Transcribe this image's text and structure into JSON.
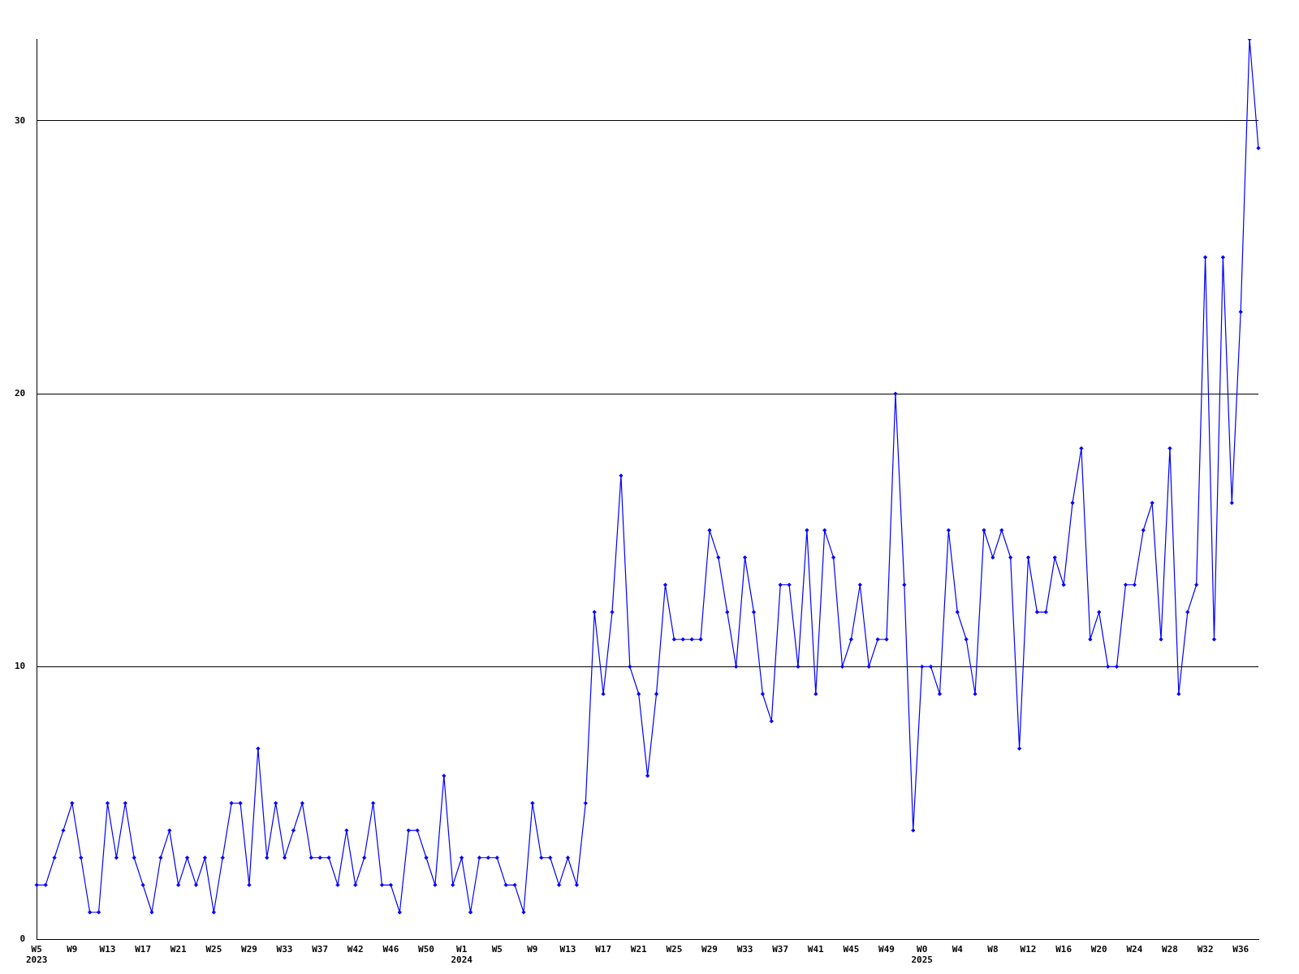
{
  "chart_data": {
    "type": "line",
    "categories": [
      "W5\n2023",
      null,
      null,
      null,
      "W9",
      null,
      null,
      null,
      "W13",
      null,
      null,
      null,
      "W17",
      null,
      null,
      null,
      "W21",
      null,
      null,
      null,
      "W25",
      null,
      null,
      null,
      "W29",
      null,
      null,
      null,
      "W33",
      null,
      null,
      null,
      "W37",
      null,
      null,
      null,
      "W42",
      null,
      null,
      null,
      "W46",
      null,
      null,
      null,
      "W50",
      null,
      null,
      null,
      "W1\n2024",
      null,
      null,
      null,
      "W5",
      null,
      null,
      null,
      "W9",
      null,
      null,
      null,
      "W13",
      null,
      null,
      null,
      "W17",
      null,
      null,
      null,
      "W21",
      null,
      null,
      null,
      "W25",
      null,
      null,
      null,
      "W29",
      null,
      null,
      null,
      "W33",
      null,
      null,
      null,
      "W37",
      null,
      null,
      null,
      "W41",
      null,
      null,
      null,
      "W45",
      null,
      null,
      null,
      "W49",
      null,
      null,
      null,
      "W0\n2025",
      null,
      null,
      null,
      "W4",
      null,
      null,
      null,
      "W8",
      null,
      null,
      null,
      "W12",
      null,
      null,
      null,
      "W16",
      null,
      null,
      null,
      "W20",
      null,
      null,
      null,
      "W24",
      null,
      null,
      null,
      "W28",
      null,
      null,
      null,
      "W32",
      null,
      null,
      null,
      "W36",
      null,
      null
    ],
    "series": [
      {
        "color": "#0000ff",
        "values": [
          2,
          2,
          3,
          4,
          5,
          3,
          1,
          1,
          5,
          3,
          5,
          3,
          2,
          1,
          3,
          4,
          2,
          3,
          2,
          3,
          1,
          3,
          5,
          5,
          2,
          7,
          3,
          5,
          3,
          4,
          5,
          3,
          3,
          3,
          2,
          4,
          2,
          3,
          5,
          2,
          2,
          1,
          4,
          4,
          3,
          2,
          6,
          2,
          3,
          1,
          3,
          3,
          3,
          2,
          2,
          1,
          5,
          3,
          3,
          2,
          3,
          2,
          5,
          12,
          9,
          12,
          17,
          10,
          9,
          6,
          9,
          13,
          11,
          11,
          11,
          11,
          15,
          14,
          12,
          10,
          14,
          12,
          9,
          8,
          13,
          13,
          10,
          15,
          9,
          15,
          14,
          10,
          11,
          13,
          10,
          11,
          11,
          20,
          13,
          4,
          10,
          10,
          9,
          15,
          12,
          11,
          9,
          15,
          14,
          15,
          14,
          7,
          14,
          12,
          12,
          14,
          13,
          16,
          18,
          11,
          12,
          10,
          10,
          13,
          13,
          15,
          16,
          11,
          18,
          9,
          12,
          13,
          25,
          11,
          25,
          16,
          23,
          33,
          29
        ]
      }
    ],
    "ylim": [
      0,
      33
    ],
    "yticks": [
      0,
      10,
      20,
      30
    ],
    "grid": "y",
    "legend": false,
    "marker": "diamond",
    "line_style": "solid"
  }
}
